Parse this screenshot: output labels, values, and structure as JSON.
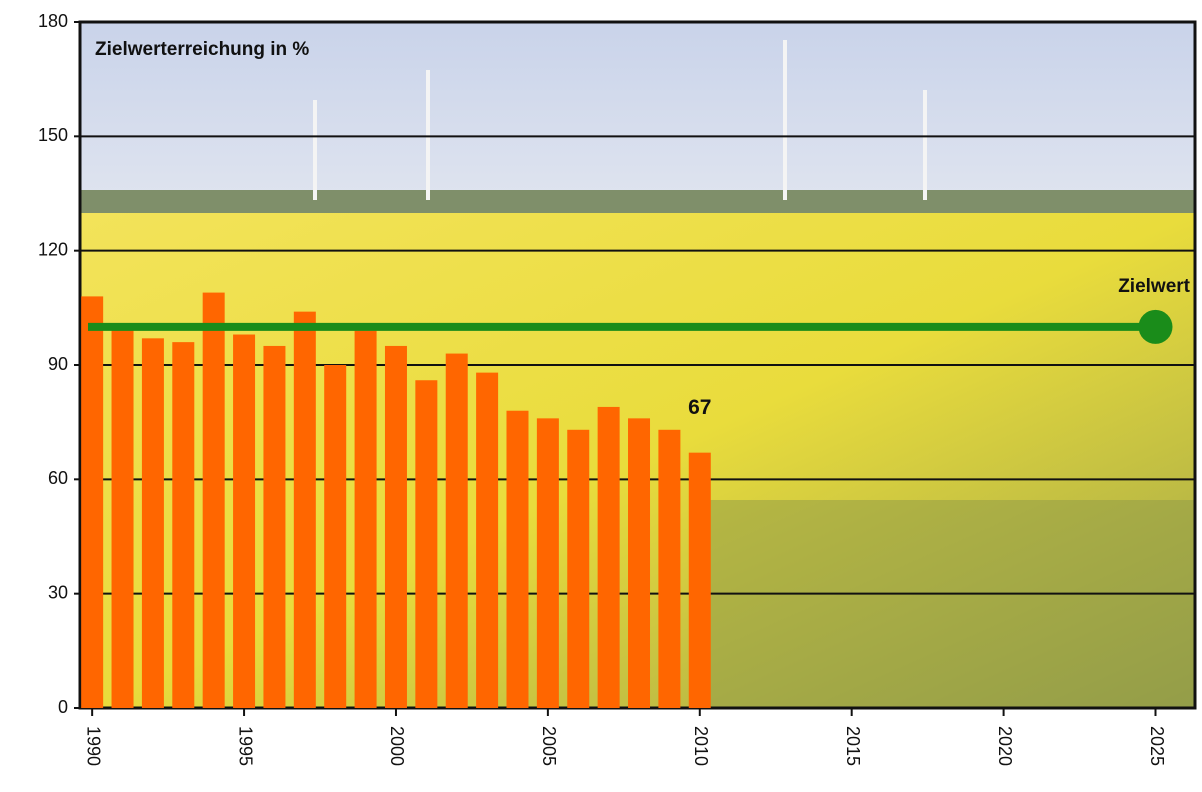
{
  "chart_data": {
    "type": "bar",
    "title": "Zielwerterreichung in %",
    "x": [
      1990,
      1991,
      1992,
      1993,
      1994,
      1995,
      1996,
      1997,
      1998,
      1999,
      2000,
      2001,
      2002,
      2003,
      2004,
      2005,
      2006,
      2007,
      2008,
      2009,
      2010
    ],
    "values": [
      108,
      100,
      97,
      96,
      109,
      98,
      95,
      104,
      90,
      99,
      95,
      86,
      93,
      88,
      78,
      76,
      73,
      79,
      76,
      73,
      67
    ],
    "color": "#ff6600",
    "xlim": [
      1989.6,
      2026.3
    ],
    "xticks": [
      1990,
      1995,
      2000,
      2005,
      2010,
      2015,
      2020,
      2025
    ],
    "ylim": [
      0,
      180
    ],
    "yticks": [
      0,
      30,
      60,
      90,
      120,
      150,
      180
    ],
    "grid": true,
    "target": {
      "name": "Zielwert",
      "value": 100,
      "x_end": 2025,
      "color": "#1a8c1a"
    }
  }
}
